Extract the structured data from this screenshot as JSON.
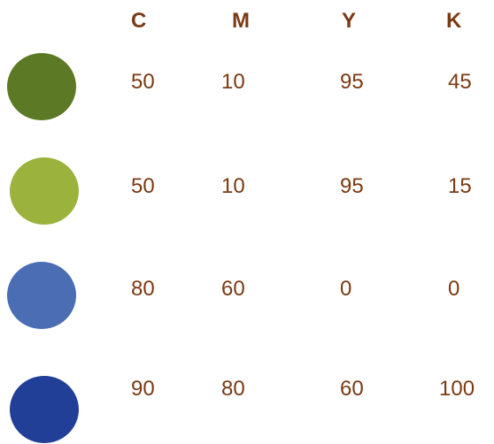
{
  "headers": [
    "C",
    "M",
    "Y",
    "K"
  ],
  "rows": [
    {
      "color": "#5c7a26",
      "values": [
        "50",
        "10",
        "95",
        "45"
      ]
    },
    {
      "color": "#9bb23c",
      "values": [
        "50",
        "10",
        "95",
        "15"
      ]
    },
    {
      "color": "#4a6db4",
      "values": [
        "80",
        "60",
        "0",
        "0"
      ]
    },
    {
      "color": "#213f97",
      "values": [
        "90",
        "80",
        "60",
        "100"
      ]
    }
  ]
}
